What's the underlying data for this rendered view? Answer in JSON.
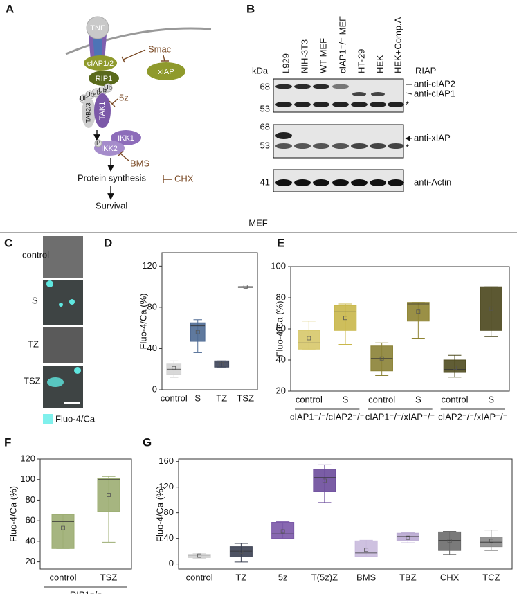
{
  "panel_a": {
    "letter": "A",
    "tnf": "TNF",
    "ciap": "cIAP1/2",
    "rip1": "RIP1",
    "smac": "Smac",
    "xiap": "xIAP",
    "ub": "Ub",
    "five_z": "5z",
    "tak1": "TAK1",
    "tab": "TAB2/3",
    "p": "P",
    "ikk1": "IKK1",
    "ikk2": "IKK2",
    "bms": "BMS",
    "protein": "Protein synthesis",
    "chx": "CHX",
    "survival": "Survival"
  },
  "panel_b": {
    "letter": "B",
    "kda": "kDa",
    "lanes": [
      "L929",
      "NIH-3T3",
      "WT MEF",
      "cIAP1⁻/⁻ MEF",
      "HT-29",
      "HEK",
      "HEK+Comp.A"
    ],
    "riap": "RIAP",
    "markers": [
      "68",
      "53",
      "68",
      "53",
      "41"
    ],
    "antibodies": [
      "anti-cIAP2",
      "anti-cIAP1",
      "anti-xIAP",
      "anti-Actin"
    ],
    "asterisk": "*"
  },
  "mef": "MEF",
  "panel_c": {
    "letter": "C",
    "conditions": [
      "control",
      "S",
      "TZ",
      "TSZ"
    ],
    "legend": "Fluo-4/Ca"
  },
  "chart_data": [
    {
      "type": "box",
      "label": "D",
      "ylabel": "Fluo-4/Ca (%)",
      "ylim": [
        0,
        133
      ],
      "yticks": [
        0,
        40,
        80,
        120
      ],
      "categories": [
        "control",
        "S",
        "TZ",
        "TSZ"
      ],
      "colors": [
        "#d4d4d4",
        "#4e6a94",
        "#3d4459",
        "#444444"
      ],
      "values": [
        {
          "min": 12,
          "q1": 15,
          "median": 20,
          "q3": 25,
          "max": 28,
          "mean": 21
        },
        {
          "min": 36,
          "q1": 47,
          "median": 62,
          "q3": 65,
          "max": 68,
          "mean": 56
        },
        {
          "min": 22,
          "q1": 22,
          "median": 26,
          "q3": 28,
          "max": 28,
          "mean": 25
        },
        {
          "min": 100,
          "q1": 100,
          "median": 100,
          "q3": 100,
          "max": 100,
          "mean": 100
        }
      ]
    },
    {
      "type": "box",
      "label": "E",
      "ylabel": "Fluo-4/Ca (%)",
      "ylim": [
        20,
        100
      ],
      "yticks": [
        20,
        40,
        60,
        80,
        100
      ],
      "categories": [
        "control",
        "S",
        "control",
        "S",
        "control",
        "S"
      ],
      "group_labels": [
        "cIAP1⁻/⁻/cIAP2⁻/⁻",
        "cIAP1⁻/⁻/xIAP⁻/⁻",
        "cIAP2⁻/⁻/xIAP⁻/⁻"
      ],
      "colors": [
        "#d7c86a",
        "#c9b74a",
        "#8b8236",
        "#8f8432",
        "#4f4b1f",
        "#4a461c"
      ],
      "values": [
        {
          "min": 47,
          "q1": 47,
          "median": 51,
          "q3": 59,
          "max": 65,
          "mean": 54
        },
        {
          "min": 50,
          "q1": 59,
          "median": 71,
          "q3": 75,
          "max": 76,
          "mean": 67
        },
        {
          "min": 30,
          "q1": 33,
          "median": 41,
          "q3": 49,
          "max": 51,
          "mean": 41
        },
        {
          "min": 54,
          "q1": 65,
          "median": 76,
          "q3": 77,
          "max": 77,
          "mean": 71
        },
        {
          "min": 29,
          "q1": 32,
          "median": 34,
          "q3": 40,
          "max": 43,
          "mean": 35
        },
        {
          "min": 55,
          "q1": 59,
          "median": 74,
          "q3": 87,
          "max": 87,
          "mean": 73
        }
      ]
    },
    {
      "type": "box",
      "label": "F",
      "ylabel": "Fluo-4/Ca (%)",
      "ylim": [
        13,
        120
      ],
      "yticks": [
        20,
        40,
        60,
        80,
        100,
        120
      ],
      "categories": [
        "control",
        "TSZ"
      ],
      "group_labels": [
        "RIP1⁻/⁻"
      ],
      "colors": [
        "#9cad72",
        "#9cad72"
      ],
      "values": [
        {
          "min": 33,
          "q1": 33,
          "median": 59,
          "q3": 66,
          "max": 66,
          "mean": 53
        },
        {
          "min": 39,
          "q1": 69,
          "median": 100,
          "q3": 101,
          "max": 103,
          "mean": 85
        }
      ]
    },
    {
      "type": "box",
      "label": "G",
      "ylabel": "Fluo-4/Ca (%)",
      "ylim": [
        -8,
        164
      ],
      "yticks": [
        0,
        40,
        80,
        120,
        160
      ],
      "categories": [
        "control",
        "TZ",
        "5z",
        "T(5z)Z",
        "BMS",
        "TBZ",
        "CHX",
        "TCZ"
      ],
      "colors": [
        "#cfcfcf",
        "#3b4052",
        "#7b58a8",
        "#6b4b9b",
        "#c9badd",
        "#b9a9d1",
        "#6b6b6b",
        "#8a8a8a"
      ],
      "values": [
        {
          "min": 9,
          "q1": 10,
          "median": 14,
          "q3": 15,
          "max": 16,
          "mean": 13
        },
        {
          "min": 3,
          "q1": 11,
          "median": 20,
          "q3": 27,
          "max": 32,
          "mean": 19
        },
        {
          "min": 39,
          "q1": 40,
          "median": 47,
          "q3": 65,
          "max": 66,
          "mean": 51
        },
        {
          "min": 96,
          "q1": 113,
          "median": 135,
          "q3": 148,
          "max": 155,
          "mean": 130
        },
        {
          "min": 12,
          "q1": 12,
          "median": 17,
          "q3": 36,
          "max": 37,
          "mean": 22
        },
        {
          "min": 33,
          "q1": 37,
          "median": 43,
          "q3": 48,
          "max": 49,
          "mean": 41
        },
        {
          "min": 15,
          "q1": 21,
          "median": 37,
          "q3": 50,
          "max": 51,
          "mean": 36
        },
        {
          "min": 21,
          "q1": 27,
          "median": 34,
          "q3": 42,
          "max": 53,
          "mean": 36
        }
      ]
    }
  ]
}
